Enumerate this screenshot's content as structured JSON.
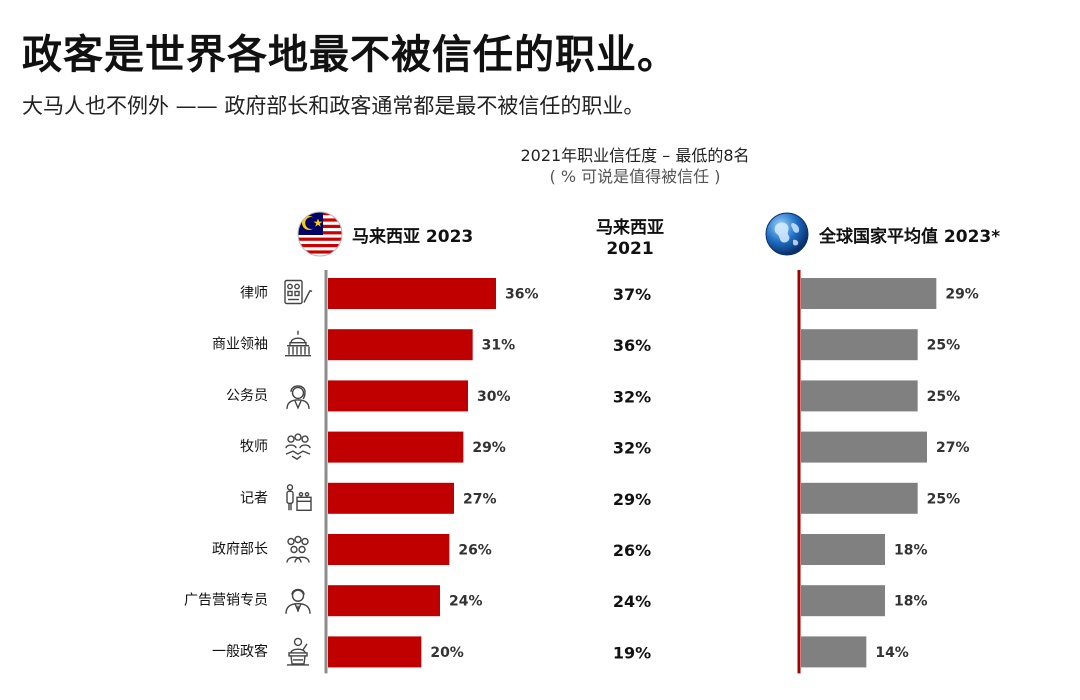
{
  "header": {
    "title": "政客是世界各地最不被信任的职业。",
    "subtitle": "大马人也不例外 —— 政府部长和政客通常都是最不被信任的职业。"
  },
  "chart_header": {
    "line1": "2021年职业信任度 – 最低的8名",
    "line2": "( % 可说是值得被信任 )"
  },
  "panels": {
    "malaysia_label": "马来西亚 2023",
    "middle_label_1": "马来西亚",
    "middle_label_2": "2021",
    "global_label": "全球国家平均值 2023*"
  },
  "colors": {
    "malaysia_bar": "#c00000",
    "global_bar": "#808080",
    "global_axis": "#a00000",
    "malaysia_axis": "#8c8c8c"
  },
  "icons": [
    "document-scales-icon",
    "capitol-building-icon",
    "civil-servant-icon",
    "clergy-handshake-icon",
    "reporter-podium-icon",
    "minister-group-icon",
    "marketer-suit-icon",
    "politician-podium-icon"
  ],
  "chart_data": {
    "type": "bar",
    "orientation": "horizontal",
    "categories": [
      "律师",
      "商业领袖",
      "公务员",
      "牧师",
      "记者",
      "政府部长",
      "广告营销专员",
      "一般政客"
    ],
    "series": [
      {
        "name": "马来西亚 2023",
        "values": [
          36,
          31,
          30,
          29,
          27,
          26,
          24,
          20
        ],
        "labels": [
          "36%",
          "31%",
          "30%",
          "29%",
          "27%",
          "26%",
          "24%",
          "20%"
        ]
      },
      {
        "name": "马来西亚 2021",
        "values": [
          37,
          36,
          32,
          32,
          29,
          26,
          24,
          19
        ],
        "labels": [
          "37%",
          "36%",
          "32%",
          "32%",
          "29%",
          "26%",
          "24%",
          "19%"
        ]
      },
      {
        "name": "全球国家平均值 2023*",
        "values": [
          29,
          25,
          25,
          27,
          25,
          18,
          18,
          14
        ],
        "labels": [
          "29%",
          "25%",
          "25%",
          "27%",
          "25%",
          "18%",
          "18%",
          "14%"
        ]
      }
    ],
    "xlim": [
      0,
      36
    ]
  }
}
